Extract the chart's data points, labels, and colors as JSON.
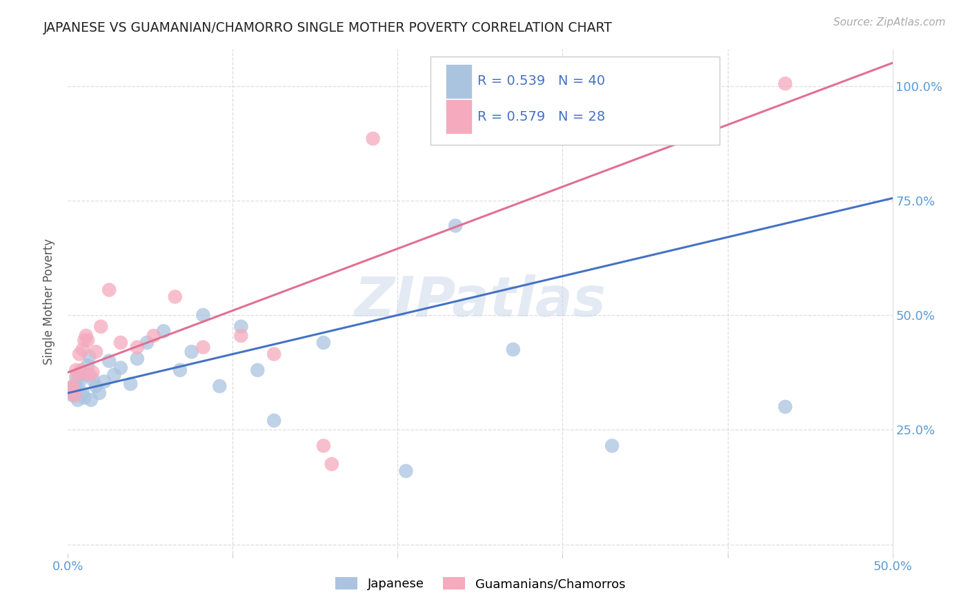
{
  "title": "JAPANESE VS GUAMANIAN/CHAMORRO SINGLE MOTHER POVERTY CORRELATION CHART",
  "source": "Source: ZipAtlas.com",
  "ylabel": "Single Mother Poverty",
  "xlim": [
    0.0,
    0.5
  ],
  "ylim": [
    -0.02,
    1.08
  ],
  "xticks": [
    0.0,
    0.1,
    0.2,
    0.3,
    0.4,
    0.5
  ],
  "xticklabels": [
    "0.0%",
    "",
    "",
    "",
    "",
    "50.0%"
  ],
  "yticks_right": [
    0.25,
    0.5,
    0.75,
    1.0
  ],
  "yticklabels_right": [
    "25.0%",
    "50.0%",
    "75.0%",
    "100.0%"
  ],
  "japanese_R": 0.539,
  "japanese_N": 40,
  "guamanian_R": 0.579,
  "guamanian_N": 28,
  "japanese_color": "#aac4e0",
  "guamanian_color": "#f5aabe",
  "japanese_line_color": "#4472c4",
  "guamanian_line_color": "#e07090",
  "legend_label1": "Japanese",
  "legend_label2": "Guamanians/Chamorros",
  "watermark": "ZIPatlas",
  "background_color": "#ffffff",
  "grid_color": "#dddddd",
  "title_color": "#222222",
  "axis_label_color": "#555555",
  "tick_label_color": "#5b9bd5",
  "jp_line_x0": 0.0,
  "jp_line_y0": 0.33,
  "jp_line_x1": 0.5,
  "jp_line_y1": 0.755,
  "gu_line_x0": 0.0,
  "gu_line_y0": 0.375,
  "gu_line_x1": 0.5,
  "gu_line_y1": 1.05,
  "japanese_x": [
    0.001,
    0.002,
    0.003,
    0.003,
    0.004,
    0.005,
    0.005,
    0.006,
    0.007,
    0.008,
    0.009,
    0.01,
    0.011,
    0.012,
    0.013,
    0.014,
    0.015,
    0.017,
    0.019,
    0.022,
    0.025,
    0.028,
    0.032,
    0.038,
    0.042,
    0.048,
    0.058,
    0.068,
    0.075,
    0.082,
    0.092,
    0.105,
    0.115,
    0.125,
    0.155,
    0.205,
    0.235,
    0.27,
    0.33,
    0.435
  ],
  "japanese_y": [
    0.335,
    0.34,
    0.33,
    0.325,
    0.345,
    0.35,
    0.365,
    0.315,
    0.355,
    0.375,
    0.33,
    0.32,
    0.37,
    0.39,
    0.41,
    0.315,
    0.36,
    0.345,
    0.33,
    0.355,
    0.4,
    0.37,
    0.385,
    0.35,
    0.405,
    0.44,
    0.465,
    0.38,
    0.42,
    0.5,
    0.345,
    0.475,
    0.38,
    0.27,
    0.44,
    0.16,
    0.695,
    0.425,
    0.215,
    0.3
  ],
  "guamanian_x": [
    0.001,
    0.002,
    0.003,
    0.004,
    0.005,
    0.006,
    0.007,
    0.008,
    0.009,
    0.01,
    0.011,
    0.012,
    0.013,
    0.015,
    0.017,
    0.02,
    0.025,
    0.032,
    0.042,
    0.052,
    0.065,
    0.082,
    0.105,
    0.125,
    0.155,
    0.16,
    0.185,
    0.435
  ],
  "guamanian_y": [
    0.33,
    0.34,
    0.345,
    0.325,
    0.38,
    0.37,
    0.415,
    0.38,
    0.425,
    0.445,
    0.455,
    0.445,
    0.37,
    0.375,
    0.42,
    0.475,
    0.555,
    0.44,
    0.43,
    0.455,
    0.54,
    0.43,
    0.455,
    0.415,
    0.215,
    0.175,
    0.885,
    1.005
  ]
}
